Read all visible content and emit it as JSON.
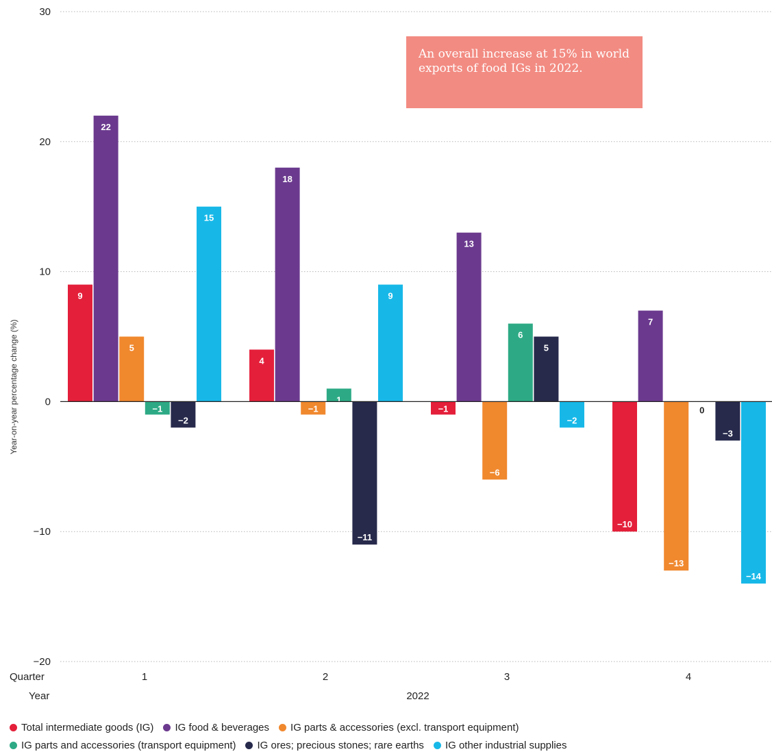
{
  "annotation": {
    "text": "An overall increase at 15% in world exports of food IGs in 2022."
  },
  "chart_data": {
    "type": "bar",
    "title": "",
    "ylabel": "Year-on-year percentage change (%)",
    "ylim": [
      -20,
      30
    ],
    "yticks": [
      "30",
      "20",
      "10",
      "0",
      "−10",
      "−20"
    ],
    "ytick_values": [
      30,
      20,
      10,
      0,
      -10,
      -20
    ],
    "grid": true,
    "x_row_labels": {
      "quarter": "Quarter",
      "year": "Year"
    },
    "categories": [
      "1",
      "2",
      "3",
      "4"
    ],
    "year": "2022",
    "legend_position": "bottom",
    "series": [
      {
        "name": "Total intermediate goods (IG)",
        "color": "#e41f3a",
        "values": [
          9,
          4,
          -1,
          -10
        ],
        "labels": [
          "9",
          "4",
          "−1",
          "−10"
        ]
      },
      {
        "name": "IG food & beverages",
        "color": "#6b3a8e",
        "values": [
          22,
          18,
          13,
          7
        ],
        "labels": [
          "22",
          "18",
          "13",
          "7"
        ]
      },
      {
        "name": "IG parts & accessories (excl. transport equipment)",
        "color": "#f0882e",
        "values": [
          5,
          -1,
          -6,
          -13
        ],
        "labels": [
          "5",
          "−1",
          "−6",
          "−13"
        ]
      },
      {
        "name": "IG parts and accessories (transport equipment)",
        "color": "#2daa85",
        "values": [
          -1,
          1,
          6,
          0
        ],
        "labels": [
          "−1",
          "1",
          "6",
          "0"
        ]
      },
      {
        "name": "IG ores; precious stones; rare earths",
        "color": "#272a4b",
        "values": [
          -2,
          -11,
          5,
          -3
        ],
        "labels": [
          "−2",
          "−11",
          "5",
          "−3"
        ]
      },
      {
        "name": "IG other industrial supplies",
        "color": "#17b8e8",
        "values": [
          15,
          9,
          -2,
          -14
        ],
        "labels": [
          "15",
          "9",
          "−2",
          "−14"
        ]
      }
    ]
  }
}
